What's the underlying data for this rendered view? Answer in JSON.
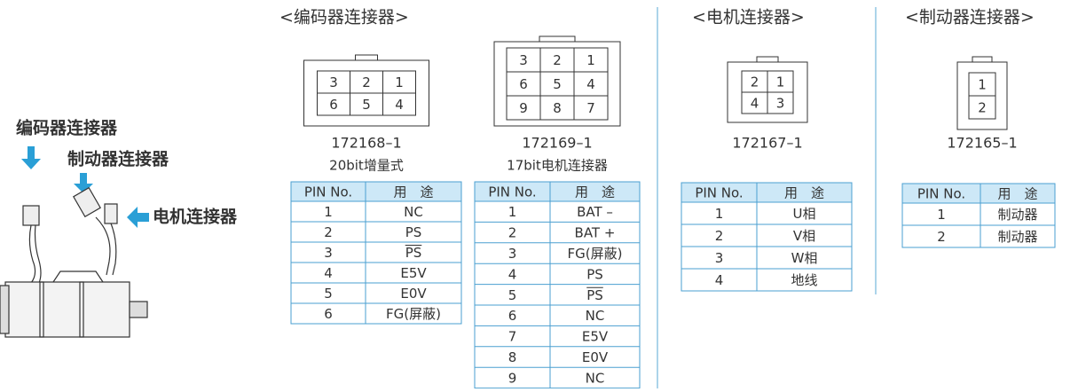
{
  "labels": {
    "encoder": "编码器连接器",
    "brake": "制动器连接器",
    "motor": "电机连接器"
  },
  "sections": [
    {
      "title": "<编码器连接器>",
      "connectors": [
        {
          "part": "172168–1",
          "note": "20bit增量式",
          "grid": [
            [
              3,
              2,
              1
            ],
            [
              6,
              5,
              4
            ]
          ],
          "table": {
            "header": [
              "PIN No.",
              "用　途"
            ],
            "rows": [
              {
                "pin": 1,
                "use": "NC"
              },
              {
                "pin": 2,
                "use": "PS"
              },
              {
                "pin": 3,
                "use": "PS",
                "overline": true
              },
              {
                "pin": 4,
                "use": "E5V"
              },
              {
                "pin": 5,
                "use": "E0V"
              },
              {
                "pin": 6,
                "use": "FG(屏蔽)"
              }
            ]
          }
        },
        {
          "part": "172169–1",
          "note": "17bit电机连接器",
          "grid": [
            [
              3,
              2,
              1
            ],
            [
              6,
              5,
              4
            ],
            [
              9,
              8,
              7
            ]
          ],
          "table": {
            "header": [
              "PIN No.",
              "用　途"
            ],
            "rows": [
              {
                "pin": 1,
                "use": "BAT –"
              },
              {
                "pin": 2,
                "use": "BAT +"
              },
              {
                "pin": 3,
                "use": "FG(屏蔽)"
              },
              {
                "pin": 4,
                "use": "PS"
              },
              {
                "pin": 5,
                "use": "PS",
                "overline": true
              },
              {
                "pin": 6,
                "use": "NC"
              },
              {
                "pin": 7,
                "use": "E5V"
              },
              {
                "pin": 8,
                "use": "E0V"
              },
              {
                "pin": 9,
                "use": "NC"
              }
            ]
          }
        }
      ]
    },
    {
      "title": "<电机连接器>",
      "connectors": [
        {
          "part": "172167–1",
          "grid": [
            [
              2,
              1
            ],
            [
              4,
              3
            ]
          ],
          "table": {
            "header": [
              "PIN No.",
              "用　途"
            ],
            "rows": [
              {
                "pin": 1,
                "use": "U相"
              },
              {
                "pin": 2,
                "use": "V相"
              },
              {
                "pin": 3,
                "use": "W相"
              },
              {
                "pin": 4,
                "use": "地线"
              }
            ]
          }
        }
      ]
    },
    {
      "title": "<制动器连接器>",
      "connectors": [
        {
          "part": "172165–1",
          "grid": [
            [
              1
            ],
            [
              2
            ]
          ],
          "table": {
            "header": [
              "PIN No.",
              "用　途"
            ],
            "rows": [
              {
                "pin": 1,
                "use": "制动器"
              },
              {
                "pin": 2,
                "use": "制动器"
              }
            ]
          }
        }
      ]
    }
  ]
}
